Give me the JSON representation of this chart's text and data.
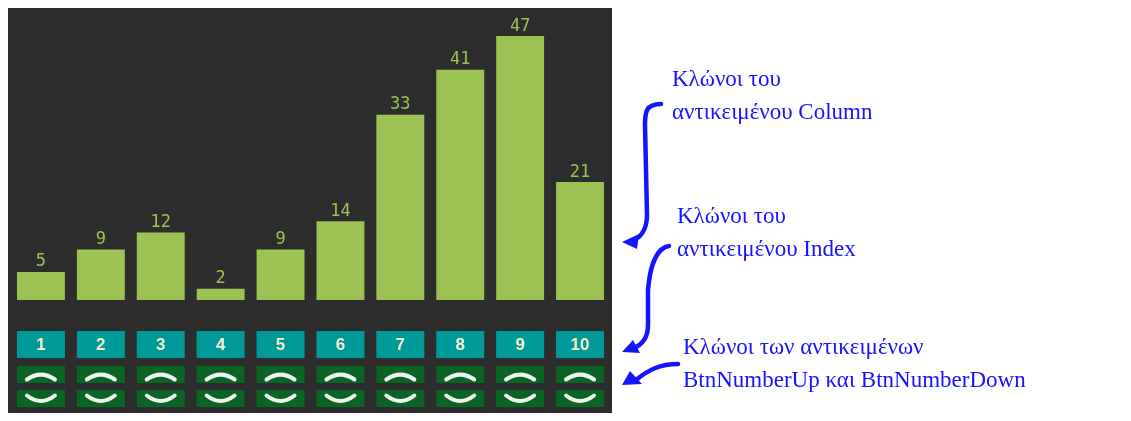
{
  "chart_data": {
    "type": "bar",
    "categories": [
      "1",
      "2",
      "3",
      "4",
      "5",
      "6",
      "7",
      "8",
      "9",
      "10"
    ],
    "values": [
      5,
      9,
      12,
      2,
      9,
      14,
      33,
      41,
      47,
      21
    ],
    "color": "#9bc253",
    "ylim": [
      0,
      47
    ],
    "data_labels": true,
    "grid": false,
    "annotations": [
      "Κλώνοι του\nαντικειμένου Column",
      "Κλώνοι του\nαντικειμένου Index",
      "Κλώνοι των αντικειμένων\nBtnNumberUp και BtnNumberDown"
    ]
  }
}
